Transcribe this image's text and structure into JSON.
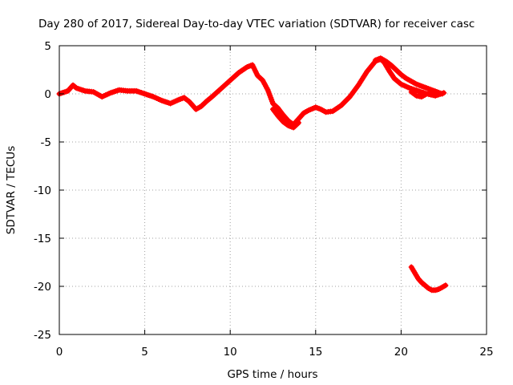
{
  "chart_data": {
    "type": "scatter",
    "title": "Day 280 of 2017, Sidereal Day-to-day VTEC variation (SDTVAR) for receiver casc",
    "xlabel": "GPS time / hours",
    "ylabel": "SDTVAR / TECUs",
    "xlim": [
      0,
      25
    ],
    "ylim": [
      -25,
      5
    ],
    "xticks": [
      0,
      5,
      10,
      15,
      20,
      25
    ],
    "yticks": [
      5,
      0,
      -5,
      -10,
      -15,
      -20,
      -25
    ],
    "xtick_labels": [
      "0",
      "5",
      "10",
      "15",
      "20",
      "25"
    ],
    "ytick_labels": [
      "5",
      "0",
      "-5",
      "-10",
      "-15",
      "-20",
      "-25"
    ],
    "grid": true,
    "legend": "none",
    "marker": "+",
    "series_color": "#ff0000",
    "series": [
      {
        "name": "main-trace",
        "x": [
          0.0,
          0.5,
          0.8,
          1.0,
          1.5,
          2.0,
          2.5,
          3.0,
          3.5,
          4.0,
          4.5,
          5.0,
          5.5,
          6.0,
          6.5,
          7.0,
          7.3,
          7.6,
          8.0,
          8.3,
          8.6,
          9.0,
          9.5,
          10.0,
          10.5,
          11.0,
          11.3,
          11.6,
          11.9,
          12.2,
          12.5,
          12.8,
          13.1,
          13.4,
          13.7,
          14.0,
          14.3,
          14.6,
          15.0,
          15.3,
          15.6,
          16.0,
          16.5,
          17.0,
          17.5,
          18.0,
          18.5,
          18.8,
          19.0,
          19.3,
          19.6,
          20.0,
          20.5,
          21.0,
          21.5,
          22.0,
          22.5
        ],
        "y": [
          0.0,
          0.3,
          0.9,
          0.6,
          0.3,
          0.2,
          -0.3,
          0.1,
          0.4,
          0.3,
          0.3,
          0.0,
          -0.3,
          -0.7,
          -1.0,
          -0.6,
          -0.4,
          -0.8,
          -1.6,
          -1.3,
          -0.8,
          -0.2,
          0.6,
          1.4,
          2.2,
          2.8,
          3.0,
          1.9,
          1.4,
          0.4,
          -1.0,
          -1.5,
          -2.2,
          -2.8,
          -3.2,
          -2.6,
          -2.0,
          -1.7,
          -1.4,
          -1.6,
          -1.9,
          -1.8,
          -1.2,
          -0.3,
          0.9,
          2.3,
          3.4,
          3.6,
          3.3,
          2.4,
          1.6,
          1.0,
          0.6,
          0.3,
          0.0,
          -0.2,
          0.1
        ]
      },
      {
        "name": "upper-branch",
        "x": [
          18.5,
          18.8,
          19.1,
          19.4,
          19.7,
          20.0,
          20.3,
          20.6,
          20.9,
          21.2,
          21.5,
          21.8,
          22.1,
          22.4
        ],
        "y": [
          3.5,
          3.7,
          3.4,
          3.0,
          2.5,
          2.0,
          1.6,
          1.3,
          1.0,
          0.8,
          0.6,
          0.4,
          0.2,
          0.0
        ]
      },
      {
        "name": "lower-branch",
        "x": [
          12.5,
          12.8,
          13.1,
          13.4,
          13.7,
          14.0,
          20.6,
          20.9,
          21.2,
          21.5,
          21.8
        ],
        "y": [
          -1.6,
          -2.3,
          -2.9,
          -3.3,
          -3.5,
          -3.0,
          0.2,
          -0.2,
          -0.3,
          0.0,
          0.1
        ]
      },
      {
        "name": "isolated-arc",
        "x": [
          20.6,
          20.8,
          21.0,
          21.2,
          21.4,
          21.6,
          21.8,
          22.0,
          22.2,
          22.4,
          22.6
        ],
        "y": [
          -18.0,
          -18.6,
          -19.2,
          -19.6,
          -19.9,
          -20.2,
          -20.4,
          -20.4,
          -20.3,
          -20.1,
          -19.9
        ]
      }
    ]
  }
}
